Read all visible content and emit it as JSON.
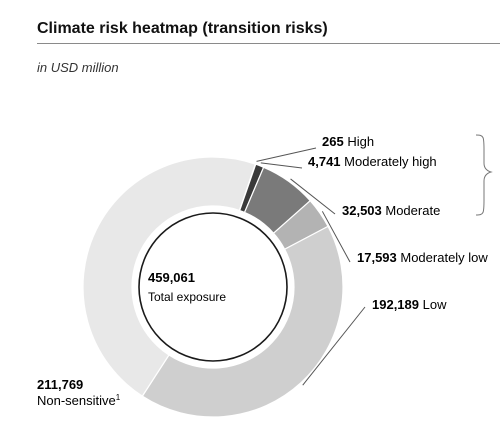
{
  "title": "Climate risk heatmap (transition risks)",
  "subtitle": "in USD million",
  "chart_data": {
    "type": "pie",
    "title": "Climate risk heatmap (transition risks)",
    "subtitle": "in USD million",
    "total": {
      "value": "459,061",
      "label": "Total exposure"
    },
    "slices": [
      {
        "name": "High",
        "value": 265,
        "value_label": "265",
        "color": "#e3262b"
      },
      {
        "name": "Moderately high",
        "value": 4741,
        "value_label": "4,741",
        "color": "#3a3a3a"
      },
      {
        "name": "Moderate",
        "value": 32503,
        "value_label": "32,503",
        "color": "#7a7a7a"
      },
      {
        "name": "Moderately low",
        "value": 17593,
        "value_label": "17,593",
        "color": "#b3b3b3"
      },
      {
        "name": "Low",
        "value": 192189,
        "value_label": "192,189",
        "color": "#cfcfcf"
      },
      {
        "name": "Non-sensitive",
        "value": 211769,
        "value_label": "211,769",
        "color": "#e8e8e8",
        "footnote": "1"
      }
    ]
  }
}
